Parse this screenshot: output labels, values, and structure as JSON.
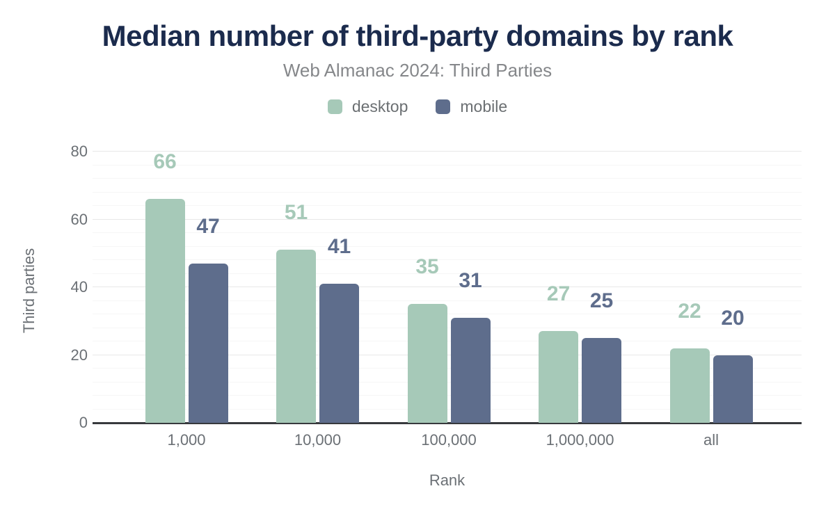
{
  "chart_data": {
    "type": "bar",
    "title": "Median number of third-party domains by rank",
    "subtitle": "Web Almanac 2024: Third Parties",
    "xlabel": "Rank",
    "ylabel": "Third parties",
    "categories": [
      "1,000",
      "10,000",
      "100,000",
      "1,000,000",
      "all"
    ],
    "series": [
      {
        "name": "desktop",
        "color": "#a6c9b8",
        "values": [
          66,
          51,
          35,
          27,
          22
        ]
      },
      {
        "name": "mobile",
        "color": "#5e6d8c",
        "values": [
          47,
          41,
          31,
          25,
          20
        ]
      }
    ],
    "ylim": [
      0,
      80
    ],
    "yticks": [
      0,
      20,
      40,
      60,
      80
    ],
    "minor_tick_interval": 4,
    "grid": true,
    "legend_position": "top",
    "colors": {
      "title": "#1b2b4d",
      "subtitle": "#85878a",
      "legend_text": "#6b6f72",
      "axis_text": "#6b7075",
      "axis_line": "#37393d",
      "grid_major": "#e8e8e8",
      "grid_minor": "#f6f6f6",
      "background": "#ffffff"
    }
  }
}
